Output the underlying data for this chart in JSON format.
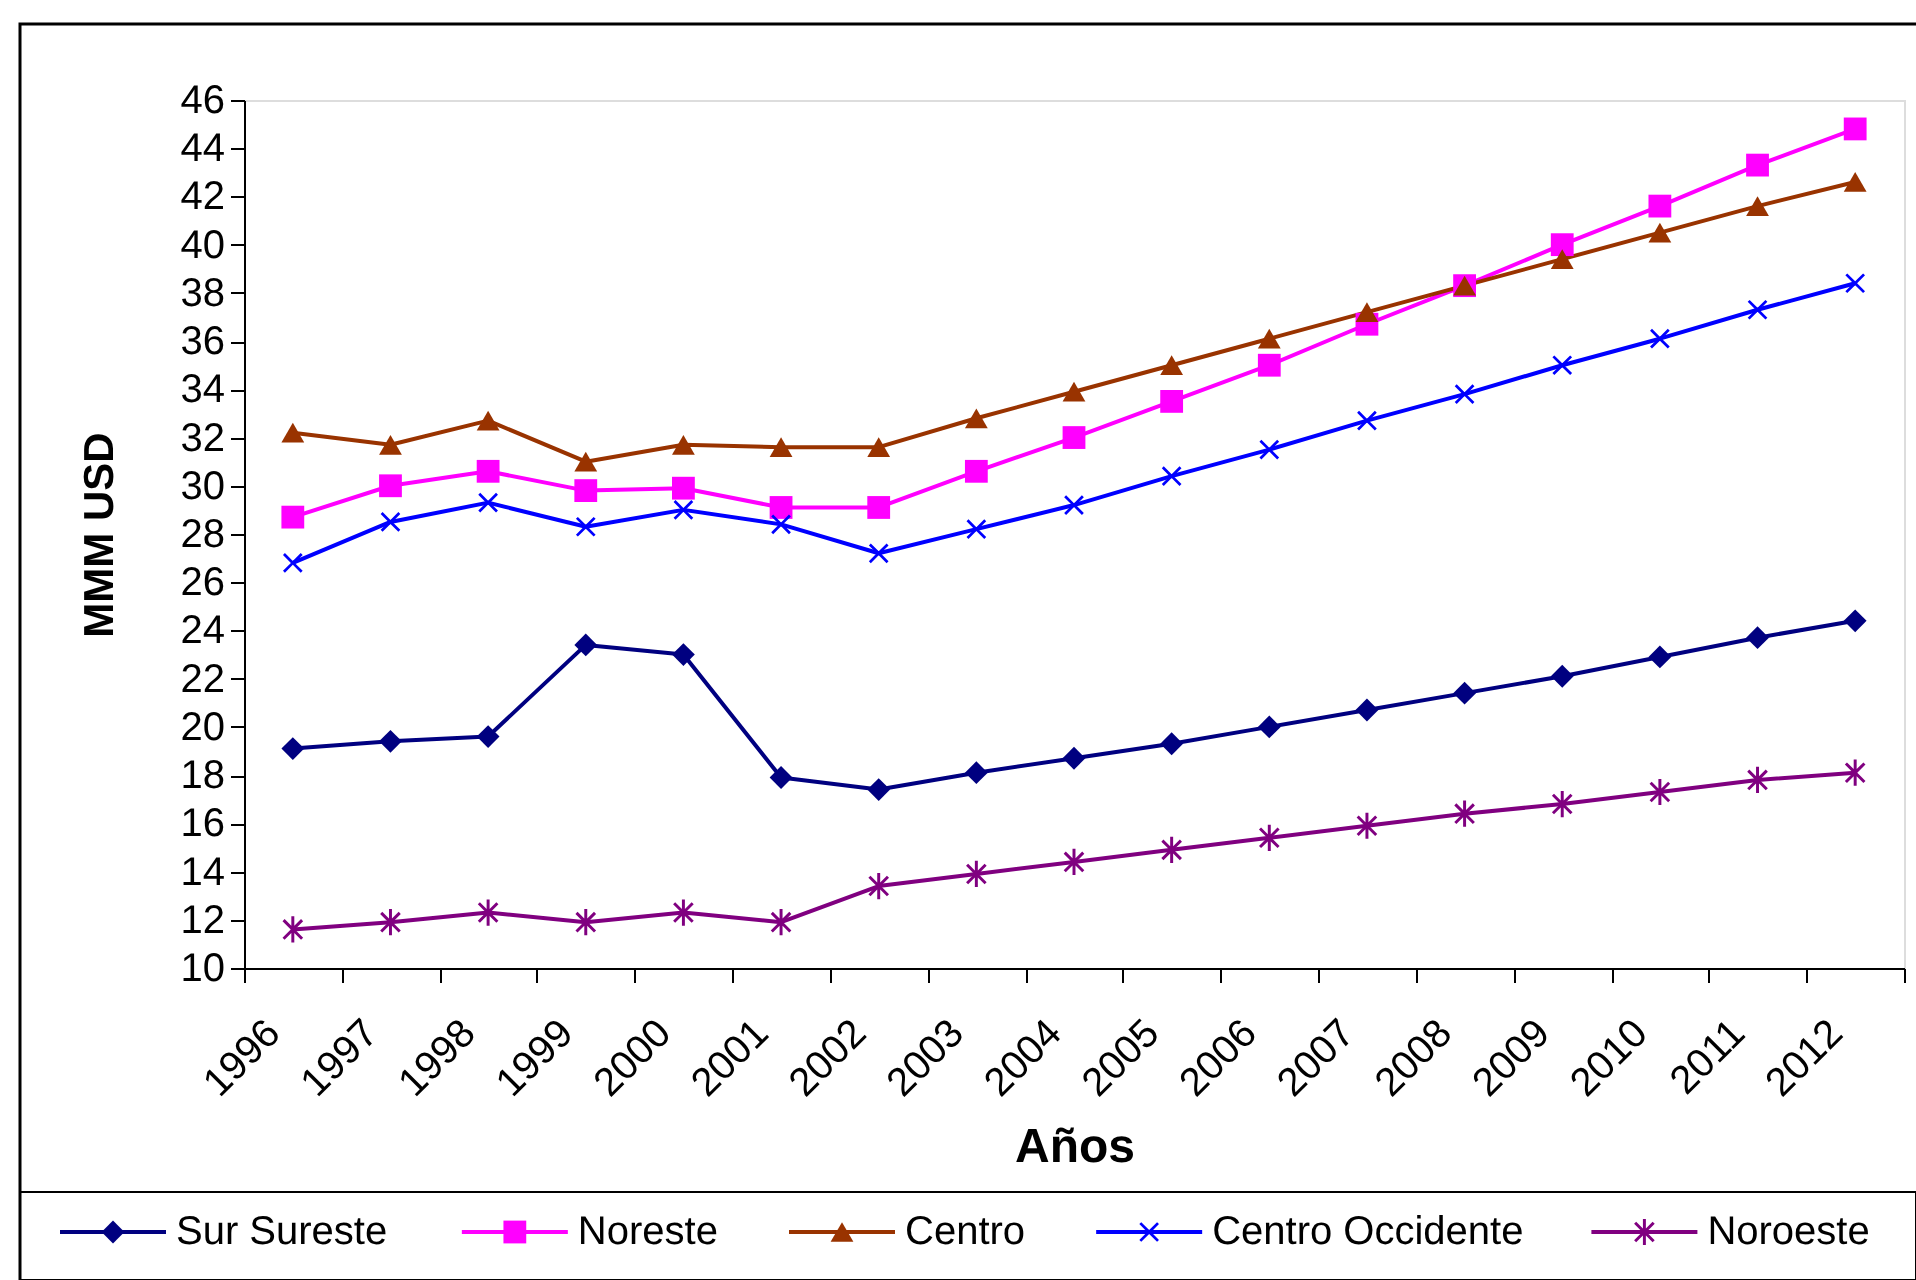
{
  "chart_data": {
    "type": "line",
    "xlabel": "Años",
    "ylabel": "MMM USD",
    "categories": [
      "1996",
      "1997",
      "1998",
      "1999",
      "2000",
      "2001",
      "2002",
      "2003",
      "2004",
      "2005",
      "2006",
      "2007",
      "2008",
      "2009",
      "2010",
      "2011",
      "2012"
    ],
    "ylim": [
      10,
      46
    ],
    "yticks": [
      10,
      12,
      14,
      16,
      18,
      20,
      22,
      24,
      26,
      28,
      30,
      32,
      34,
      36,
      38,
      40,
      42,
      44,
      46
    ],
    "grid": false,
    "legend": "bottom",
    "line_style": "solid",
    "series": [
      {
        "name": "Sur Sureste",
        "color": "#000080",
        "marker": "diamond",
        "values": [
          19.1,
          19.4,
          19.6,
          23.4,
          23.0,
          17.9,
          17.4,
          18.1,
          18.7,
          19.3,
          20.0,
          20.7,
          21.4,
          22.1,
          22.9,
          23.7,
          24.4
        ]
      },
      {
        "name": "Noreste",
        "color": "#ff00ff",
        "marker": "square",
        "values": [
          28.7,
          30.0,
          30.6,
          29.8,
          29.9,
          29.1,
          29.1,
          30.6,
          32.0,
          33.5,
          35.0,
          36.7,
          38.3,
          40.0,
          41.6,
          43.3,
          44.8
        ]
      },
      {
        "name": "Centro",
        "color": "#993300",
        "marker": "triangle",
        "values": [
          32.2,
          31.7,
          32.7,
          31.0,
          31.7,
          31.6,
          31.6,
          32.8,
          33.9,
          35.0,
          36.1,
          37.2,
          38.3,
          39.4,
          40.5,
          41.6,
          42.6
        ]
      },
      {
        "name": "Centro Occidente",
        "color": "#0000ff",
        "marker": "cross",
        "values": [
          26.8,
          28.5,
          29.3,
          28.3,
          29.0,
          28.4,
          27.2,
          28.2,
          29.2,
          30.4,
          31.5,
          32.7,
          33.8,
          35.0,
          36.1,
          37.3,
          38.4
        ]
      },
      {
        "name": "Noroeste",
        "color": "#800080",
        "marker": "star",
        "values": [
          11.6,
          11.9,
          12.3,
          11.9,
          12.3,
          11.9,
          13.4,
          13.9,
          14.4,
          14.9,
          15.4,
          15.9,
          16.4,
          16.8,
          17.3,
          17.8,
          18.1
        ]
      }
    ]
  }
}
